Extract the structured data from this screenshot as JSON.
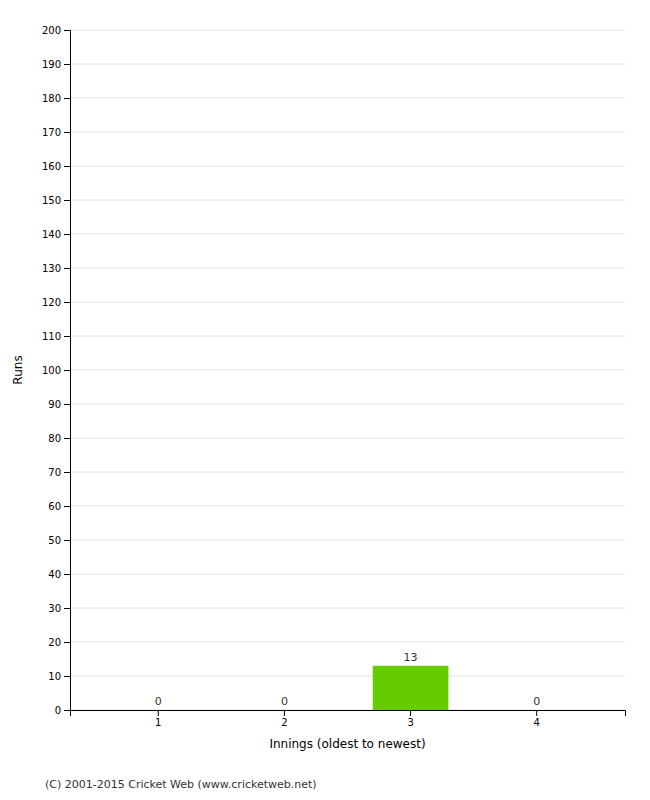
{
  "chart_data": {
    "type": "bar",
    "xlabel": "Innings (oldest to newest)",
    "ylabel": "Runs",
    "categories": [
      1,
      2,
      3,
      4
    ],
    "values": [
      0,
      0,
      13,
      0
    ],
    "color": "#66cc00",
    "ylim": [
      0,
      200
    ],
    "yticks": [
      0,
      10,
      20,
      30,
      40,
      50,
      60,
      70,
      80,
      90,
      100,
      110,
      120,
      130,
      140,
      150,
      160,
      170,
      180,
      190,
      200
    ],
    "grid": true,
    "data_labels": true,
    "annotations": [
      "(C) 2001-2015 Cricket Web (www.cricketweb.net)"
    ]
  }
}
